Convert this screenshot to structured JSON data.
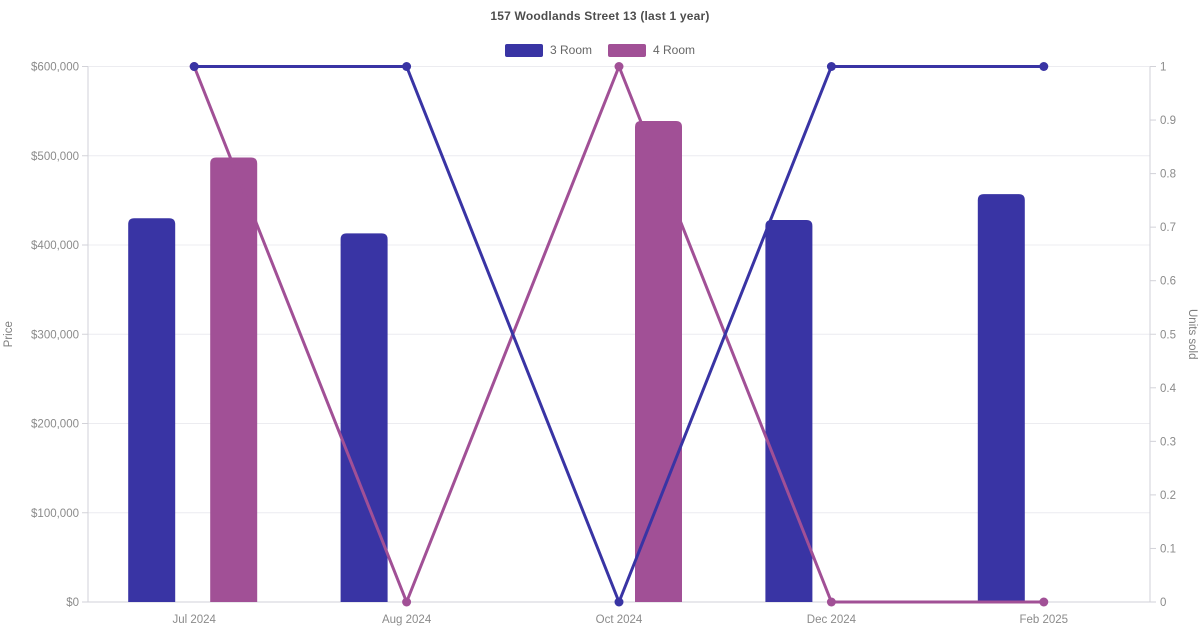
{
  "chart_data": {
    "type": "bar",
    "subtype": "combo-bar-line-dual-axis",
    "title": "157 Woodlands Street 13 (last 1 year)",
    "categories": [
      "Jul 2024",
      "Aug 2024",
      "Oct 2024",
      "Dec 2024",
      "Feb 2025"
    ],
    "bar_series": [
      {
        "name": "3 Room",
        "axis": "left",
        "color": "#3934A4",
        "values": [
          430000,
          413000,
          null,
          428000,
          457000
        ]
      },
      {
        "name": "4 Room",
        "axis": "left",
        "color": "#A15096",
        "values": [
          498000,
          null,
          539000,
          null,
          null
        ]
      }
    ],
    "line_series": [
      {
        "name": "3 Room",
        "axis": "right",
        "color": "#3934A4",
        "values": [
          1,
          1,
          0,
          1,
          1
        ]
      },
      {
        "name": "4 Room",
        "axis": "right",
        "color": "#A15096",
        "values": [
          1,
          0,
          1,
          0,
          0
        ]
      }
    ],
    "left_axis": {
      "label": "Price",
      "min": 0,
      "max": 600000,
      "step": 100000,
      "tick_format": "currency",
      "tick_labels": [
        "$0",
        "$100,000",
        "$200,000",
        "$300,000",
        "$400,000",
        "$500,000",
        "$600,000"
      ]
    },
    "right_axis": {
      "label": "Units sold",
      "min": 0,
      "max": 1,
      "step": 0.1,
      "tick_labels": [
        "0",
        "0.1",
        "0.2",
        "0.3",
        "0.4",
        "0.5",
        "0.6",
        "0.7",
        "0.8",
        "0.9",
        "1"
      ]
    },
    "legend": [
      {
        "label": "3 Room",
        "color": "#3934A4"
      },
      {
        "label": "4 Room",
        "color": "#A15096"
      }
    ],
    "grid": "horizontal-only",
    "legend_position": "top-center",
    "colors": {
      "background": "#ffffff",
      "grid_line": "#ececf0",
      "axis_line": "#d2d2d8",
      "tick_text": "#8b8b8b",
      "title_text": "#4d4d4d",
      "legend_text": "#666666"
    }
  }
}
